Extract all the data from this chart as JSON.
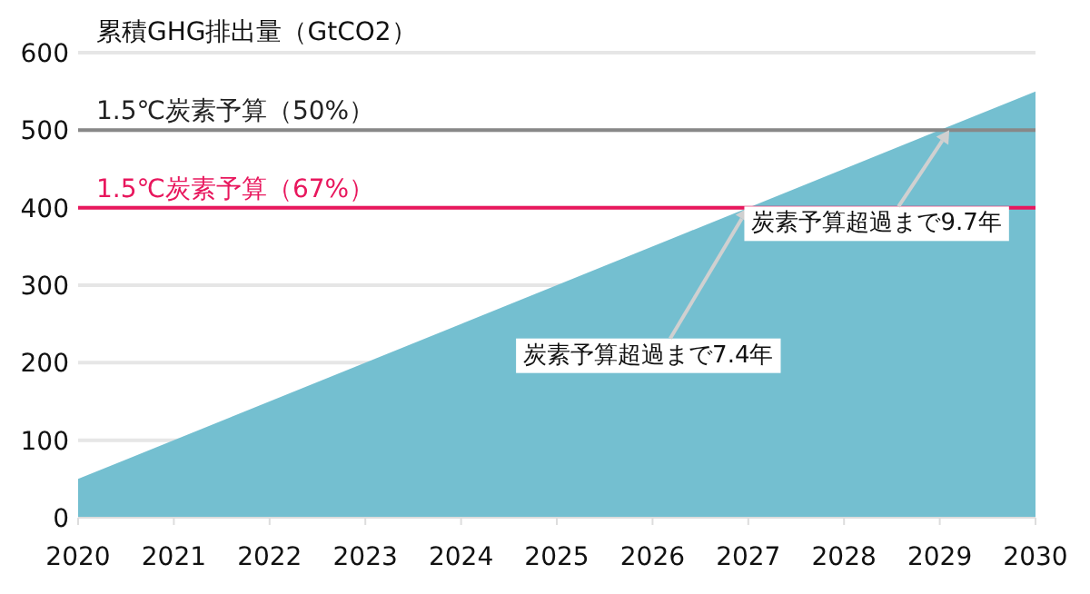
{
  "chart_data": {
    "type": "area",
    "ylabel": "累積GHG排出量（GtCO2）",
    "x": [
      2020,
      2030
    ],
    "series": [
      {
        "color": "#74bfd0",
        "values": [
          50,
          550
        ]
      }
    ],
    "xlim": [
      2020,
      2030
    ],
    "xticks": [
      2020,
      2021,
      2022,
      2023,
      2024,
      2025,
      2026,
      2027,
      2028,
      2029,
      2030
    ],
    "ylim": [
      0,
      600
    ],
    "yticks": [
      0,
      100,
      200,
      300,
      400,
      500,
      600
    ],
    "grid": "y",
    "ref_lines": [
      {
        "axis": "y",
        "value": 500,
        "label": "1.5℃炭素予算（50%）",
        "color": "#888888"
      },
      {
        "axis": "y",
        "value": 400,
        "label": "1.5℃炭素予算（67%）",
        "color": "#e8175d"
      }
    ],
    "annotations": [
      {
        "text": "炭素予算超過まで7.4年",
        "x": 2027,
        "y": 400
      },
      {
        "text": "炭素予算超過まで9.7年",
        "x": 2029.1,
        "y": 500
      }
    ]
  }
}
